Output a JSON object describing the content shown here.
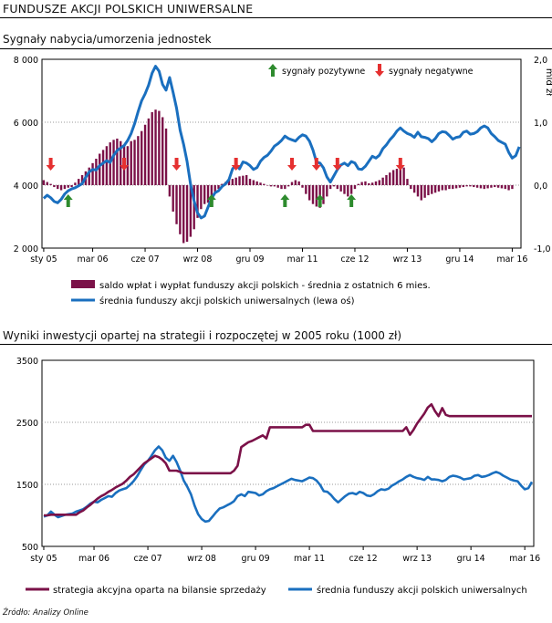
{
  "page": {
    "title": "FUNDUSZE AKCJI POLSKICH UNIWERSALNE",
    "source": "Źródło: Analizy Online"
  },
  "chart_data": [
    {
      "type": "bar+line",
      "title": "Sygnały nabycia/umorzenia jednostek",
      "x_tick_labels": [
        "sty 05",
        "mar 06",
        "cze 07",
        "wrz 08",
        "gru 09",
        "mar 11",
        "cze 12",
        "wrz 13",
        "gru 14",
        "mar 16"
      ],
      "x_tick_positions": [
        0,
        14,
        29,
        44,
        59,
        74,
        89,
        104,
        119,
        134
      ],
      "y_left": {
        "range": [
          2000,
          8000
        ],
        "ticks": [
          2000,
          4000,
          6000,
          8000
        ],
        "tick_labels": [
          "2 000",
          "4 000",
          "6 000",
          "8 000"
        ]
      },
      "y_right": {
        "label": "mld zł",
        "range": [
          -1,
          2
        ],
        "ticks": [
          -1,
          0,
          1,
          2
        ],
        "tick_labels": [
          "-1,0",
          "0,0",
          "1,0",
          "2,0"
        ]
      },
      "signals_legend": {
        "positive": "sygnały pozytywne",
        "negative": "sygnały negatywne"
      },
      "signals": {
        "negative_months": [
          2,
          23,
          38,
          55,
          71,
          78,
          84,
          102
        ],
        "positive_months": [
          7,
          48,
          69,
          79,
          88
        ]
      },
      "series": [
        {
          "name": "saldo wpłat i wypłat funduszy akcji polskich - średnia z ostatnich 6 mies.",
          "axis": "right",
          "kind": "bar",
          "color": "#7b1148",
          "values": [
            0.08,
            0.05,
            0.02,
            -0.03,
            -0.06,
            -0.08,
            -0.06,
            -0.04,
            -0.03,
            0.04,
            0.1,
            0.16,
            0.22,
            0.28,
            0.35,
            0.42,
            0.5,
            0.56,
            0.62,
            0.68,
            0.72,
            0.74,
            0.7,
            0.62,
            0.62,
            0.7,
            0.72,
            0.78,
            0.86,
            0.96,
            1.06,
            1.16,
            1.2,
            1.18,
            1.08,
            0.9,
            -0.18,
            -0.42,
            -0.62,
            -0.78,
            -0.92,
            -0.9,
            -0.82,
            -0.7,
            -0.52,
            -0.38,
            -0.3,
            -0.28,
            -0.2,
            -0.12,
            -0.06,
            0.02,
            0.05,
            0.08,
            0.1,
            0.12,
            0.14,
            0.15,
            0.16,
            0.1,
            0.08,
            0.06,
            0.04,
            0.02,
            0.0,
            -0.02,
            -0.02,
            -0.04,
            -0.06,
            -0.06,
            -0.02,
            0.05,
            0.08,
            0.06,
            -0.04,
            -0.14,
            -0.24,
            -0.3,
            -0.34,
            -0.36,
            -0.3,
            -0.18,
            -0.06,
            -0.02,
            -0.06,
            -0.1,
            -0.14,
            -0.18,
            -0.14,
            -0.06,
            0.02,
            0.05,
            0.06,
            0.03,
            0.04,
            0.06,
            0.08,
            0.12,
            0.16,
            0.2,
            0.24,
            0.26,
            0.3,
            0.28,
            0.1,
            -0.06,
            -0.12,
            -0.18,
            -0.24,
            -0.2,
            -0.16,
            -0.14,
            -0.12,
            -0.1,
            -0.08,
            -0.08,
            -0.06,
            -0.06,
            -0.05,
            -0.04,
            -0.03,
            -0.02,
            -0.02,
            -0.03,
            -0.04,
            -0.05,
            -0.06,
            -0.05,
            -0.04,
            -0.03,
            -0.04,
            -0.05,
            -0.06,
            -0.08,
            -0.06
          ]
        },
        {
          "name": "średnia funduszy akcji polskich uniwersalnych (lewa oś)",
          "axis": "left",
          "kind": "line",
          "color": "#1a6fbf",
          "values": [
            3580,
            3680,
            3600,
            3480,
            3440,
            3550,
            3720,
            3820,
            3880,
            3920,
            3980,
            4050,
            4250,
            4420,
            4500,
            4480,
            4620,
            4700,
            4780,
            4720,
            4950,
            5100,
            5180,
            5260,
            5420,
            5640,
            5960,
            6340,
            6680,
            6900,
            7180,
            7560,
            7780,
            7620,
            7200,
            7020,
            7420,
            6950,
            6450,
            5750,
            5300,
            4760,
            4020,
            3500,
            3120,
            2960,
            3020,
            3300,
            3580,
            3760,
            3820,
            3960,
            4040,
            4180,
            4520,
            4640,
            4520,
            4740,
            4700,
            4620,
            4500,
            4560,
            4760,
            4880,
            4950,
            5080,
            5240,
            5320,
            5420,
            5560,
            5480,
            5440,
            5400,
            5520,
            5600,
            5560,
            5400,
            5120,
            4740,
            4700,
            4550,
            4260,
            4100,
            4300,
            4500,
            4640,
            4700,
            4620,
            4750,
            4700,
            4520,
            4500,
            4600,
            4760,
            4920,
            4860,
            4950,
            5160,
            5280,
            5440,
            5560,
            5720,
            5820,
            5720,
            5640,
            5600,
            5520,
            5680,
            5540,
            5520,
            5480,
            5380,
            5480,
            5640,
            5700,
            5680,
            5580,
            5460,
            5520,
            5540,
            5680,
            5720,
            5620,
            5640,
            5700,
            5820,
            5880,
            5820,
            5640,
            5540,
            5420,
            5360,
            5300,
            5040,
            4860,
            4940,
            5220
          ]
        }
      ]
    },
    {
      "type": "line",
      "title": "Wyniki inwestycji opartej na strategii i rozpoczętej w 2005 roku (1000 zł)",
      "x_tick_labels": [
        "sty 05",
        "mar 06",
        "cze 07",
        "wrz 08",
        "gru 09",
        "mar 11",
        "cze 12",
        "wrz 13",
        "gru 14",
        "mar 16"
      ],
      "x_tick_positions": [
        0,
        14,
        29,
        44,
        59,
        74,
        89,
        104,
        119,
        134
      ],
      "y": {
        "range": [
          500,
          3500
        ],
        "ticks": [
          500,
          1500,
          2500,
          3500
        ],
        "tick_labels": [
          "500",
          "1500",
          "2500",
          "3500"
        ]
      },
      "series": [
        {
          "name": "strategia akcyjna oparta na bilansie sprzedaży",
          "color": "#7b1148",
          "values": [
            1000,
            1000,
            1010,
            1010,
            1010,
            1010,
            1010,
            1010,
            1010,
            1010,
            1050,
            1080,
            1130,
            1170,
            1220,
            1270,
            1310,
            1340,
            1380,
            1410,
            1450,
            1480,
            1510,
            1560,
            1620,
            1660,
            1720,
            1780,
            1840,
            1880,
            1920,
            1960,
            1940,
            1900,
            1840,
            1720,
            1720,
            1720,
            1700,
            1680,
            1680,
            1680,
            1680,
            1680,
            1680,
            1680,
            1680,
            1680,
            1680,
            1680,
            1680,
            1680,
            1680,
            1720,
            1800,
            2100,
            2140,
            2180,
            2200,
            2230,
            2260,
            2290,
            2240,
            2420,
            2420,
            2420,
            2420,
            2420,
            2420,
            2420,
            2420,
            2420,
            2420,
            2460,
            2460,
            2360,
            2360,
            2360,
            2360,
            2360,
            2360,
            2360,
            2360,
            2360,
            2360,
            2360,
            2360,
            2360,
            2360,
            2360,
            2360,
            2360,
            2360,
            2360,
            2360,
            2360,
            2360,
            2360,
            2360,
            2360,
            2360,
            2420,
            2300,
            2380,
            2480,
            2560,
            2640,
            2740,
            2790,
            2680,
            2600,
            2730,
            2620,
            2600,
            2600,
            2600,
            2600,
            2600,
            2600,
            2600,
            2600,
            2600,
            2600,
            2600,
            2600,
            2600,
            2600,
            2600,
            2600,
            2600,
            2600,
            2600,
            2600,
            2600,
            2600,
            2600,
            2600
          ]
        },
        {
          "name": "średnia funduszy akcji polskich uniwersalnych",
          "color": "#1a6fbf",
          "values": [
            980,
            1000,
            1060,
            1010,
            970,
            990,
            1010,
            1020,
            1030,
            1060,
            1080,
            1100,
            1140,
            1190,
            1220,
            1210,
            1250,
            1280,
            1310,
            1300,
            1360,
            1400,
            1420,
            1440,
            1490,
            1550,
            1630,
            1730,
            1820,
            1880,
            1960,
            2050,
            2110,
            2050,
            1930,
            1880,
            1960,
            1860,
            1720,
            1560,
            1460,
            1340,
            1160,
            1020,
            940,
            900,
            910,
            980,
            1050,
            1110,
            1130,
            1160,
            1190,
            1230,
            1310,
            1340,
            1310,
            1380,
            1370,
            1360,
            1320,
            1340,
            1390,
            1420,
            1440,
            1470,
            1500,
            1530,
            1560,
            1590,
            1570,
            1560,
            1550,
            1580,
            1610,
            1600,
            1560,
            1490,
            1390,
            1380,
            1330,
            1260,
            1210,
            1260,
            1310,
            1350,
            1360,
            1340,
            1380,
            1360,
            1320,
            1310,
            1340,
            1390,
            1420,
            1410,
            1430,
            1480,
            1510,
            1550,
            1580,
            1620,
            1650,
            1620,
            1600,
            1590,
            1570,
            1620,
            1580,
            1580,
            1570,
            1550,
            1570,
            1620,
            1640,
            1630,
            1610,
            1580,
            1590,
            1600,
            1640,
            1650,
            1620,
            1630,
            1650,
            1680,
            1700,
            1680,
            1640,
            1610,
            1580,
            1560,
            1550,
            1480,
            1420,
            1440,
            1540
          ]
        }
      ]
    }
  ]
}
